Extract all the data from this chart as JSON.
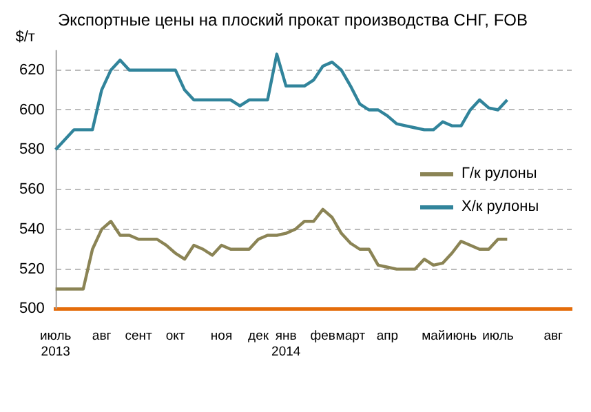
{
  "chart_data": {
    "type": "line",
    "title": "Экспортные цены на плоский прокат производства СНГ, FOB",
    "ylabel": "$/т",
    "categories": [
      "июль\n2013",
      null,
      null,
      null,
      null,
      "авг",
      null,
      null,
      null,
      "сент",
      null,
      null,
      null,
      "окт",
      null,
      null,
      null,
      null,
      "ноя",
      null,
      null,
      null,
      "дек",
      null,
      null,
      "янв\n2014",
      null,
      null,
      null,
      "фев",
      null,
      null,
      "март",
      null,
      null,
      null,
      "апр",
      null,
      null,
      null,
      null,
      "май",
      null,
      null,
      "июнь",
      null,
      null,
      null,
      "июль",
      null,
      null,
      null,
      null,
      null,
      "авг",
      null,
      null
    ],
    "series": [
      {
        "name": "Г/к рулоны",
        "color": "#8b8455",
        "values": [
          510,
          510,
          510,
          510,
          530,
          540,
          544,
          537,
          537,
          535,
          535,
          535,
          532,
          528,
          525,
          532,
          530,
          527,
          532,
          530,
          530,
          530,
          535,
          537,
          537,
          538,
          540,
          544,
          544,
          550,
          546,
          538,
          533,
          530,
          530,
          522,
          521,
          520,
          520,
          520,
          525,
          522,
          523,
          528,
          534,
          532,
          530,
          530,
          535,
          535,
          null,
          null,
          null,
          null,
          null,
          null,
          null
        ]
      },
      {
        "name": "Х/к рулоны",
        "color": "#31849b",
        "values": [
          580,
          585,
          590,
          590,
          590,
          610,
          620,
          625,
          620,
          620,
          620,
          620,
          620,
          620,
          610,
          605,
          605,
          605,
          605,
          605,
          602,
          605,
          605,
          605,
          628,
          612,
          612,
          612,
          615,
          622,
          624,
          620,
          612,
          603,
          600,
          600,
          597,
          593,
          592,
          591,
          590,
          590,
          594,
          592,
          592,
          600,
          605,
          601,
          600,
          605,
          null,
          null,
          null,
          null,
          null,
          null,
          null
        ]
      }
    ],
    "ylim": [
      500,
      630
    ],
    "yticks": [
      500,
      520,
      540,
      560,
      580,
      600,
      620
    ],
    "grid": "y",
    "legend": "right",
    "marker": "none",
    "line_style": "solid"
  }
}
